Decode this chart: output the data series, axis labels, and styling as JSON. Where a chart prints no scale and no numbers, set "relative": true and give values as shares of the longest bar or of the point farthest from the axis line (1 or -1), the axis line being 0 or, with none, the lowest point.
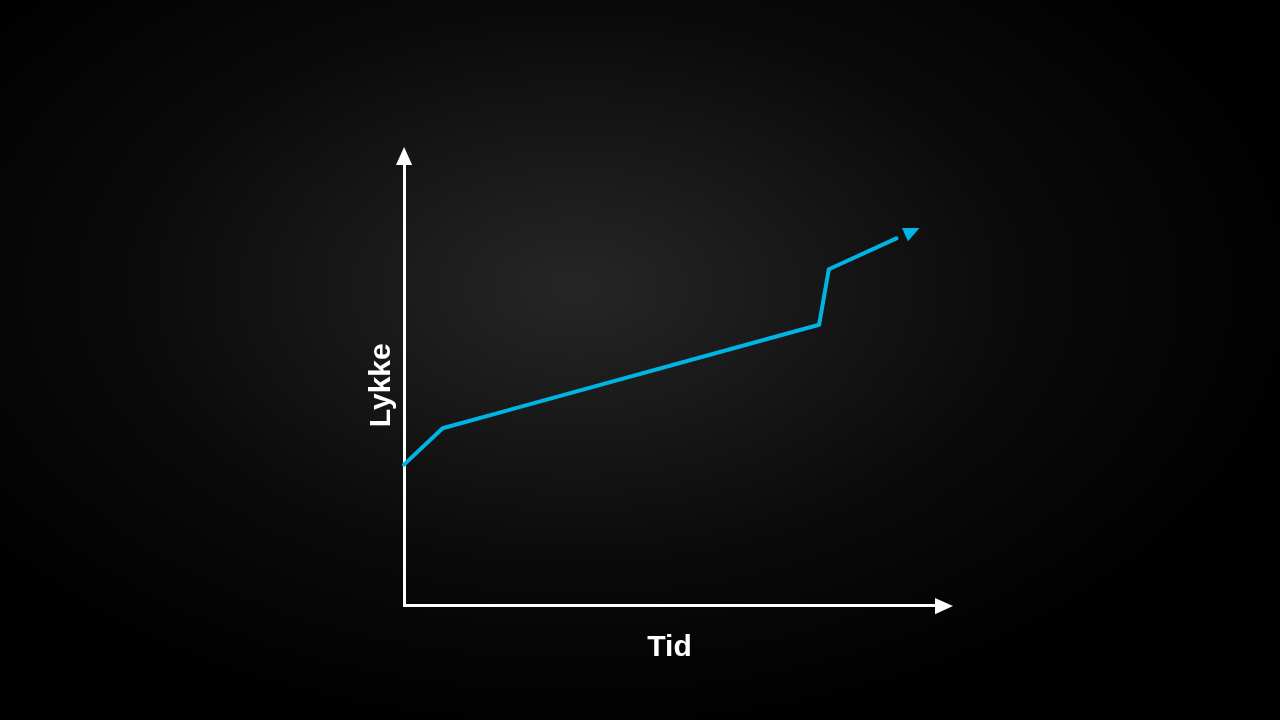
{
  "chart_data": {
    "type": "line",
    "relative": true,
    "xlabel": "Tid",
    "ylabel": "Lykke",
    "categories": [
      null,
      null,
      null,
      null,
      null,
      null,
      null,
      null,
      null,
      null,
      null,
      null,
      null,
      null,
      null,
      null,
      null,
      null,
      null,
      null,
      null,
      null,
      null,
      null,
      null,
      null,
      null,
      null,
      null,
      null,
      null,
      null,
      null,
      null,
      null,
      null,
      null,
      null,
      null,
      null,
      null,
      null,
      null,
      null,
      null,
      null,
      null,
      null,
      null,
      null,
      null,
      null,
      null,
      null,
      null,
      null
    ],
    "grid": false,
    "legend": false,
    "marker": "none",
    "line_style": "solid",
    "series": [
      {
        "color": "#00b4e4",
        "values": [
          0.384,
          null,
          null,
          null,
          0.483,
          null,
          null,
          null,
          null,
          null,
          null,
          null,
          null,
          null,
          null,
          null,
          null,
          null,
          null,
          null,
          null,
          null,
          null,
          null,
          null,
          null,
          null,
          null,
          null,
          null,
          null,
          null,
          null,
          null,
          null,
          null,
          null,
          null,
          null,
          null,
          null,
          null,
          null,
          0.765,
          0.916,
          null,
          null,
          null,
          null,
          null,
          null,
          1,
          null,
          null,
          null,
          null
        ]
      }
    ]
  }
}
